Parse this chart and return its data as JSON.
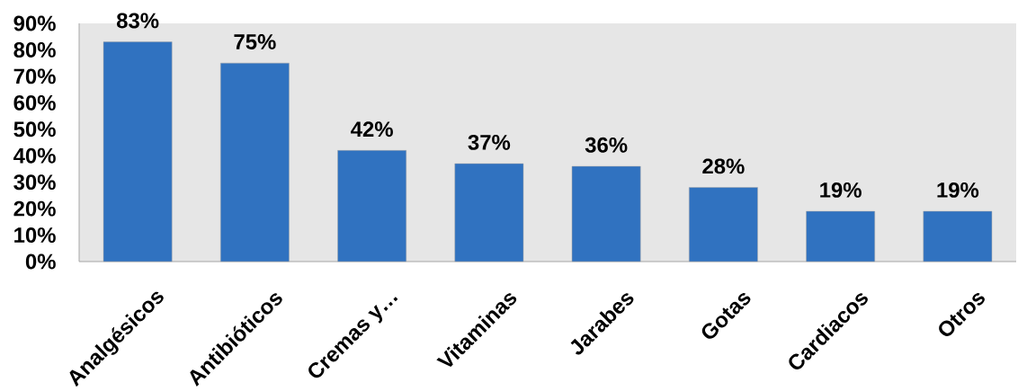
{
  "chart_data": {
    "type": "bar",
    "categories": [
      "Analgésicos",
      "Antibióticos",
      "Cremas y…",
      "Vitaminas",
      "Jarabes",
      "Gotas",
      "Cardiacos",
      "Otros"
    ],
    "values": [
      83,
      75,
      42,
      37,
      36,
      28,
      19,
      19
    ],
    "value_labels": [
      "83%",
      "75%",
      "42%",
      "37%",
      "36%",
      "28%",
      "19%",
      "19%"
    ],
    "color": "#3072c0",
    "ylim": [
      0,
      90
    ],
    "yticks": [
      {
        "value": 0,
        "label": "0%"
      },
      {
        "value": 10,
        "label": "10%"
      },
      {
        "value": 20,
        "label": "20%"
      },
      {
        "value": 30,
        "label": "30%"
      },
      {
        "value": 40,
        "label": "40%"
      },
      {
        "value": 50,
        "label": "50%"
      },
      {
        "value": 60,
        "label": "60%"
      },
      {
        "value": 70,
        "label": "70%"
      },
      {
        "value": 80,
        "label": "80%"
      },
      {
        "value": 90,
        "label": "90%"
      }
    ]
  }
}
